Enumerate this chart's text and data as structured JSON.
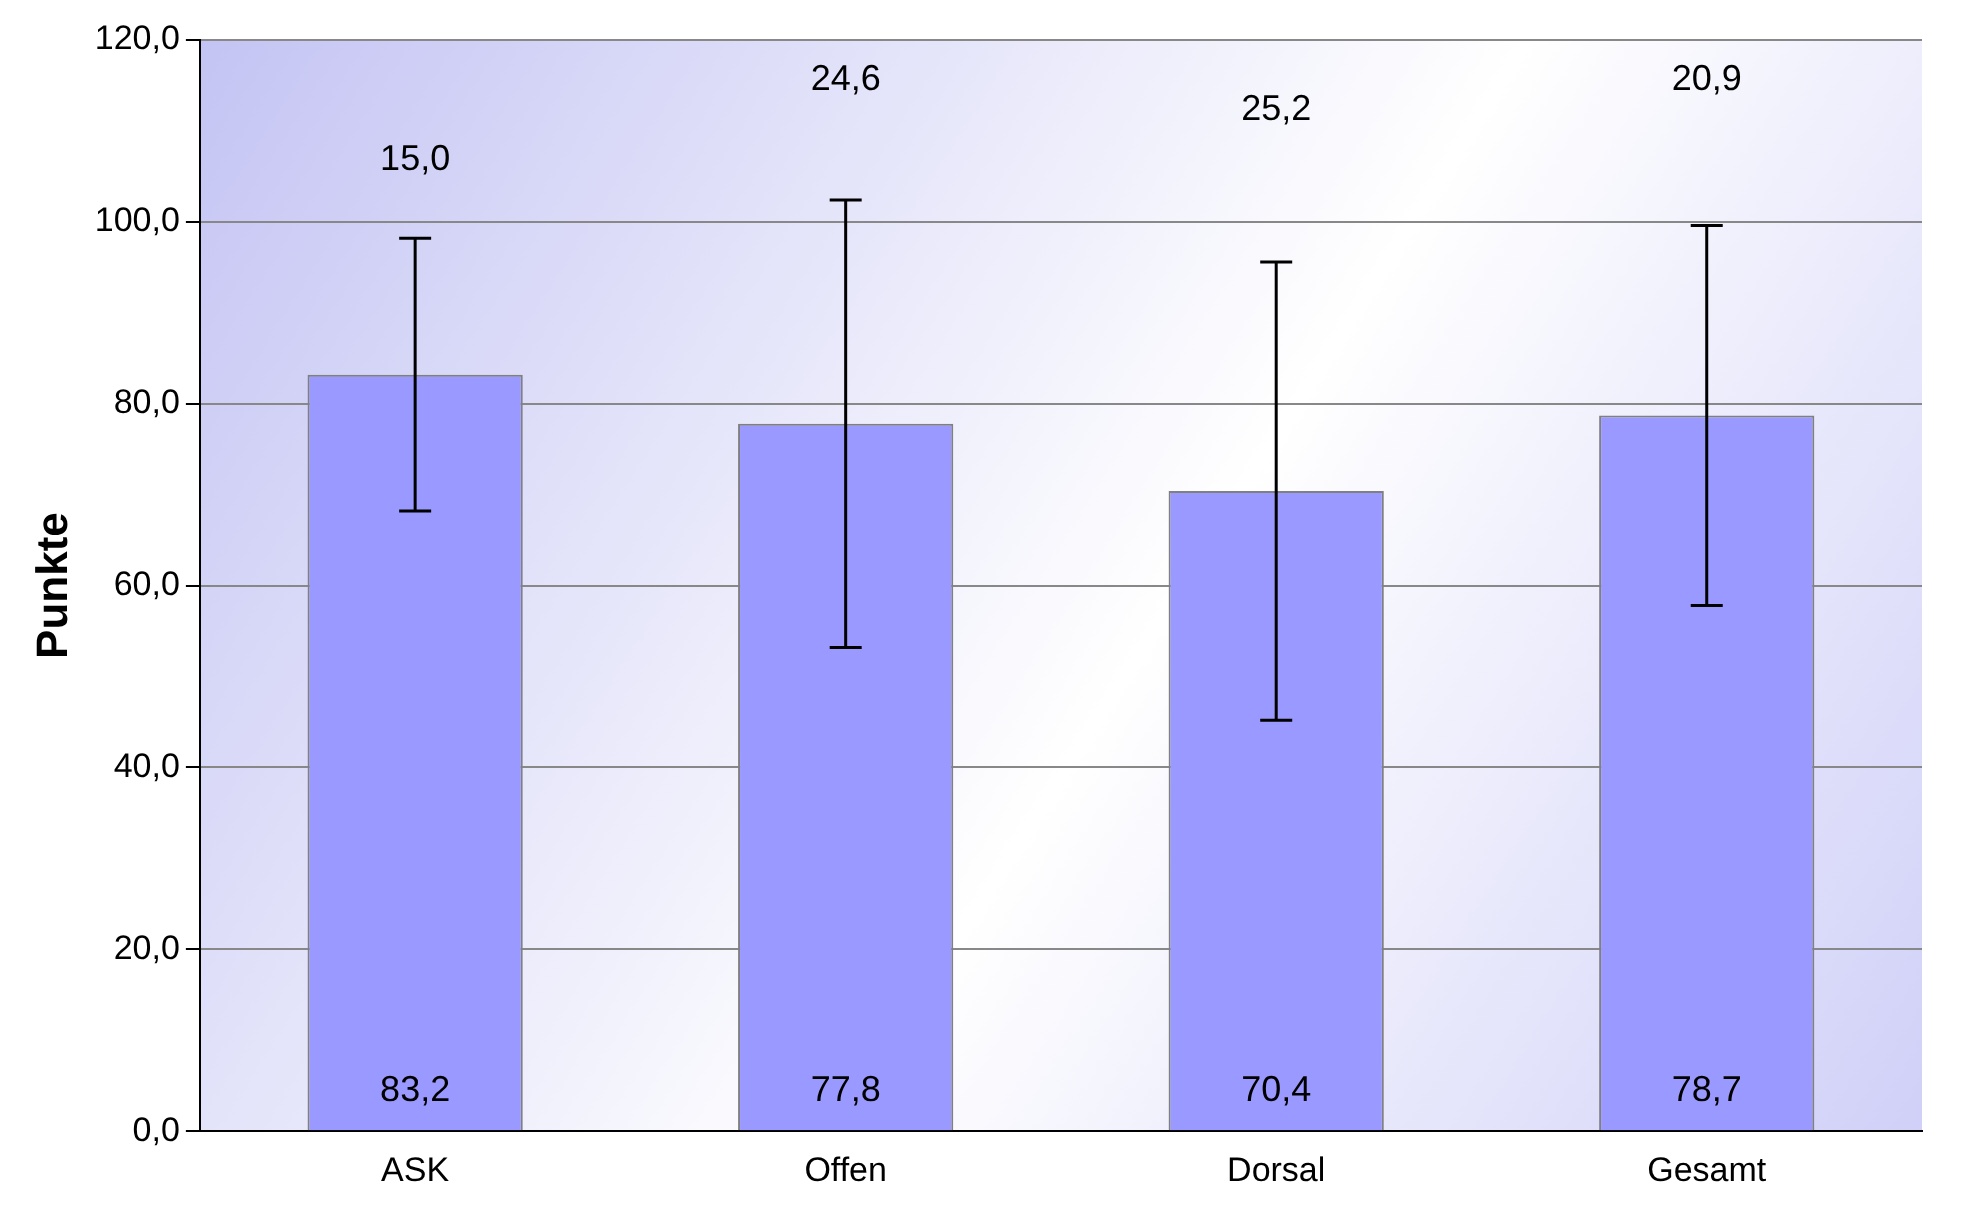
{
  "chart_data": {
    "type": "bar",
    "ylabel": "Punkte",
    "categories": [
      "ASK",
      "Offen",
      "Dorsal",
      "Gesamt"
    ],
    "values": [
      83.2,
      77.8,
      70.4,
      78.7
    ],
    "errors": [
      15.0,
      24.6,
      25.2,
      20.9
    ],
    "value_labels": [
      "83,2",
      "77,8",
      "70,4",
      "78,7"
    ],
    "color": "#9999ff",
    "ylim": [
      0,
      120
    ],
    "yticks": [
      {
        "value": 0,
        "label": "0,0"
      },
      {
        "value": 20,
        "label": "20,0"
      },
      {
        "value": 40,
        "label": "40,0"
      },
      {
        "value": 60,
        "label": "60,0"
      },
      {
        "value": 80,
        "label": "80,0"
      },
      {
        "value": 100,
        "label": "100,0"
      },
      {
        "value": 120,
        "label": "120,0"
      }
    ],
    "annotations": [
      "15,0",
      "24,6",
      "25,2",
      "20,9"
    ],
    "grid": "y",
    "legend": false
  }
}
